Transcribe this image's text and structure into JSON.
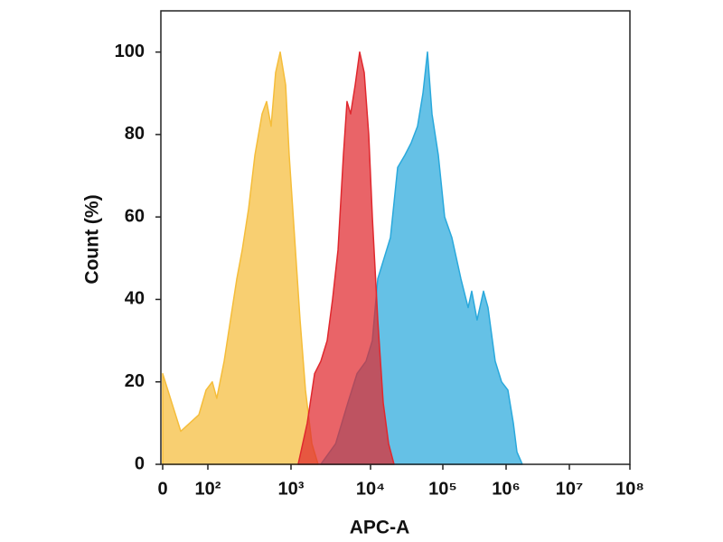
{
  "chart_data": {
    "type": "area",
    "xlabel": "APC-A",
    "ylabel": "Count  (%)",
    "xscale": "biexponential",
    "xlim": [
      0,
      100000000
    ],
    "xticks": [
      0,
      {
        "value": 100,
        "label": "10²"
      },
      {
        "value": 1000,
        "label": "10³"
      },
      {
        "value": 10000,
        "label": "10⁴"
      },
      {
        "value": 100000,
        "label": "10⁵"
      },
      {
        "value": 1000000,
        "label": "10⁶"
      },
      {
        "value": 10000000,
        "label": "10⁷"
      },
      {
        "value": 100000000,
        "label": "10⁸"
      }
    ],
    "ylim": [
      0,
      110
    ],
    "yticks": [
      0,
      20,
      40,
      60,
      80,
      100
    ],
    "series": [
      {
        "color": "#f5bd3a",
        "x": [
          0,
          20,
          40,
          60,
          80,
          96,
          113,
          128,
          157,
          187,
          223,
          259,
          309,
          368,
          449,
          509,
          576,
          653,
          741,
          862,
          951,
          1110,
          1300,
          1520,
          1830,
          2190
        ],
        "values": [
          22,
          15,
          8,
          10,
          12,
          18,
          20,
          16,
          25,
          35,
          45,
          52,
          62,
          75,
          85,
          88,
          82,
          95,
          100,
          92,
          75,
          55,
          35,
          18,
          5,
          0
        ]
      },
      {
        "color": "#2aa9dc",
        "x": [
          2370,
          3640,
          5200,
          6760,
          8770,
          10590,
          12590,
          15400,
          18840,
          23710,
          29850,
          36520,
          44670,
          53090,
          61310,
          70790,
          86600,
          106800,
          138900,
          193100,
          251200,
          286200,
          348000,
          439400,
          518000,
          672400,
          848300,
          1068000,
          1301000,
          1484000,
          1807000
        ],
        "values": [
          0,
          5,
          15,
          22,
          25,
          30,
          45,
          50,
          55,
          72,
          75,
          78,
          82,
          90,
          100,
          85,
          75,
          60,
          55,
          45,
          38,
          42,
          35,
          42,
          38,
          25,
          20,
          18,
          10,
          3,
          0
        ]
      },
      {
        "color": "#e0282e",
        "x": [
          1230,
          1600,
          1980,
          2370,
          2850,
          3330,
          3900,
          4560,
          5060,
          5620,
          6410,
          7300,
          8330,
          9490,
          10590,
          12590,
          14960,
          17780,
          21130
        ],
        "values": [
          0,
          10,
          22,
          25,
          30,
          40,
          52,
          75,
          88,
          85,
          92,
          100,
          95,
          80,
          60,
          35,
          15,
          5,
          0
        ]
      }
    ]
  }
}
